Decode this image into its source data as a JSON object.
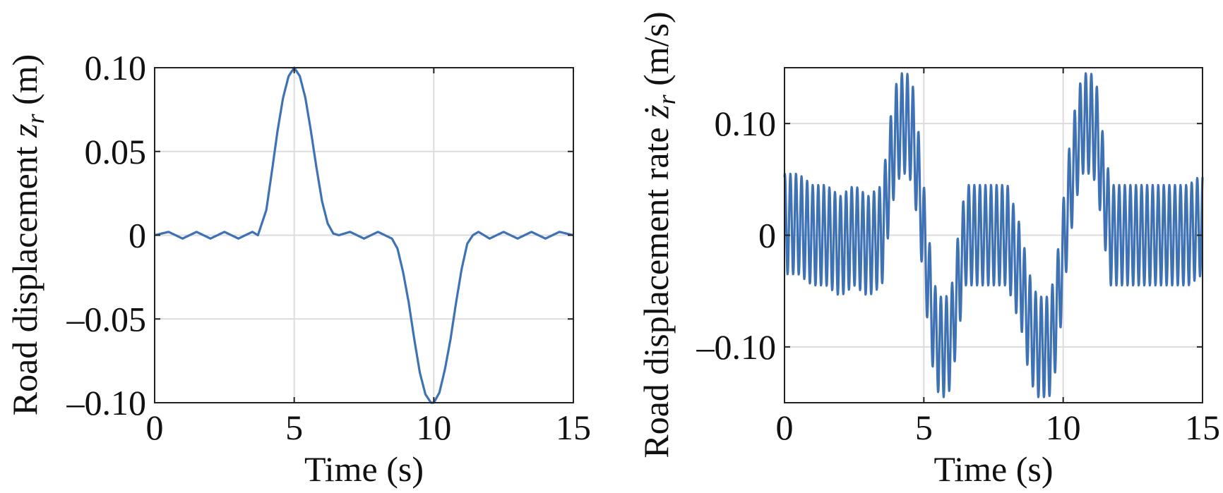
{
  "chart_data": [
    {
      "type": "line",
      "xlabel": "Time (s)",
      "ylabel": {
        "prefix": "Road displacement ",
        "symbol": "z",
        "subscript": "r",
        "unit": " (m)"
      },
      "xlim": [
        0,
        15
      ],
      "ylim": [
        -0.1,
        0.1
      ],
      "xticks": [
        0,
        5,
        10,
        15
      ],
      "xtick_labels": [
        "0",
        "5",
        "10",
        "15"
      ],
      "yticks": [
        0.1,
        0.05,
        0,
        -0.05,
        -0.1
      ],
      "ytick_labels": [
        "0.10",
        "0.05",
        "0",
        "–0.05",
        "–0.10"
      ],
      "grid": true,
      "line_color": "#3f72b5",
      "series": [
        {
          "x": [
            0,
            0.5,
            1,
            1.5,
            2,
            2.5,
            3,
            3.5,
            3.7,
            4,
            4.2,
            4.4,
            4.6,
            4.8,
            5,
            5.2,
            5.4,
            5.6,
            5.8,
            6,
            6.2,
            6.4,
            6.6,
            7,
            7.5,
            8,
            8.5,
            8.7,
            8.9,
            9.1,
            9.3,
            9.5,
            9.7,
            9.9,
            10,
            10.2,
            10.4,
            10.6,
            10.8,
            11,
            11.2,
            11.4,
            11.6,
            12,
            12.5,
            13,
            13.5,
            14,
            14.5,
            15
          ],
          "y": [
            0,
            0.002,
            -0.002,
            0.002,
            -0.002,
            0.002,
            -0.002,
            0.002,
            0,
            0.015,
            0.038,
            0.062,
            0.082,
            0.095,
            0.1,
            0.095,
            0.082,
            0.062,
            0.04,
            0.02,
            0.007,
            0.001,
            0,
            0.002,
            -0.002,
            0.002,
            -0.002,
            -0.008,
            -0.022,
            -0.04,
            -0.062,
            -0.082,
            -0.095,
            -0.1,
            -0.1,
            -0.094,
            -0.08,
            -0.062,
            -0.04,
            -0.02,
            -0.005,
            0,
            0.002,
            -0.002,
            0.002,
            -0.002,
            0.002,
            -0.002,
            0.002,
            0
          ]
        }
      ]
    },
    {
      "type": "line",
      "xlabel": "Time (s)",
      "ylabel": {
        "prefix": "Road displacement rate ",
        "symbol": "ż",
        "subscript": "r",
        "unit": " (m/s)"
      },
      "xlim": [
        0,
        15
      ],
      "ylim": [
        -0.15,
        0.15
      ],
      "xticks": [
        0,
        5,
        10,
        15
      ],
      "xtick_labels": [
        "0",
        "5",
        "10",
        "15"
      ],
      "yticks": [
        0.1,
        0,
        -0.1
      ],
      "ytick_labels": [
        "0.10",
        "0",
        "–0.10"
      ],
      "grid": true,
      "line_color": "#3f72b5",
      "series": [
        {
          "x": [
            0,
            0.5,
            1,
            1.5,
            2,
            2.5,
            3,
            3.5,
            3.8,
            4,
            4.2,
            4.4,
            4.6,
            4.8,
            5,
            5.2,
            5.4,
            5.6,
            5.8,
            6,
            6.2,
            6.5,
            7,
            7.5,
            8,
            8.5,
            8.7,
            8.9,
            9.1,
            9.3,
            9.5,
            9.7,
            9.9,
            10.1,
            10.3,
            10.5,
            10.7,
            10.9,
            11,
            11.2,
            11.4,
            11.7,
            12,
            12.5,
            13,
            13.5,
            14,
            14.5,
            15
          ],
          "y": [
            0.01,
            0.01,
            0.0,
            0.0,
            -0.01,
            0.0,
            -0.01,
            0.0,
            0.06,
            0.09,
            0.1,
            0.1,
            0.09,
            0.05,
            0.0,
            -0.05,
            -0.09,
            -0.1,
            -0.1,
            -0.09,
            -0.05,
            0.0,
            0.0,
            0.0,
            0.0,
            -0.04,
            -0.07,
            -0.09,
            -0.1,
            -0.1,
            -0.1,
            -0.08,
            -0.04,
            0.01,
            0.05,
            0.08,
            0.1,
            0.1,
            0.1,
            0.09,
            0.05,
            0.0,
            0.0,
            0.0,
            0.0,
            0.0,
            0.0,
            0.0,
            0.01
          ],
          "ripple": {
            "amplitude": 0.045,
            "period_s": 0.2
          }
        }
      ]
    }
  ]
}
